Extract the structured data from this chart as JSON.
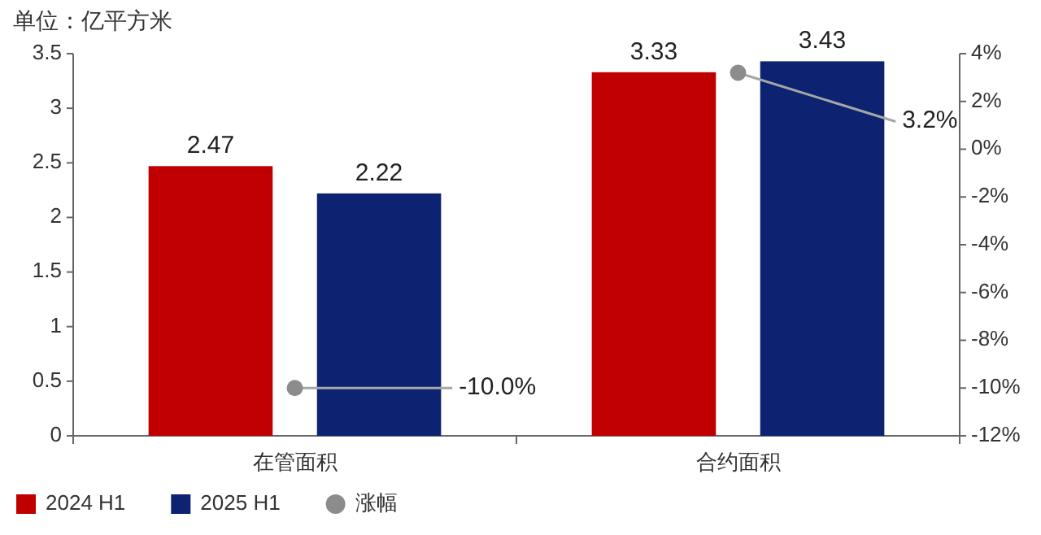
{
  "chart_data": {
    "type": "bar",
    "ylabel": "单位：亿平方米",
    "categories": [
      "在管面积",
      "合约面积"
    ],
    "series": [
      {
        "name": "2024 H1",
        "color": "#c00000",
        "values": [
          2.47,
          3.33
        ]
      },
      {
        "name": "2025 H1",
        "color": "#0d2270",
        "values": [
          2.22,
          3.43
        ]
      },
      {
        "name": "涨幅",
        "type": "scatter",
        "axis": "y2",
        "color": "#8c8c8c",
        "values": [
          -10.0,
          3.2
        ],
        "value_labels": [
          "-10.0%",
          "3.2%"
        ]
      }
    ],
    "data_labels": true,
    "ylim": [
      0,
      3.5
    ],
    "yticks": [
      0,
      0.5,
      1,
      1.5,
      2,
      2.5,
      3,
      3.5
    ],
    "y2lim": [
      -12,
      4
    ],
    "y2ticks": [
      {
        "value": -12,
        "label": "-12%"
      },
      {
        "value": -10,
        "label": "-10%"
      },
      {
        "value": -8,
        "label": "-8%"
      },
      {
        "value": -6,
        "label": "-6%"
      },
      {
        "value": -4,
        "label": "-4%"
      },
      {
        "value": -2,
        "label": "-2%"
      },
      {
        "value": 0,
        "label": "0%"
      },
      {
        "value": 2,
        "label": "2%"
      },
      {
        "value": 4,
        "label": "4%"
      }
    ],
    "legend": "bottom left",
    "marker": "circle",
    "grid": false
  }
}
